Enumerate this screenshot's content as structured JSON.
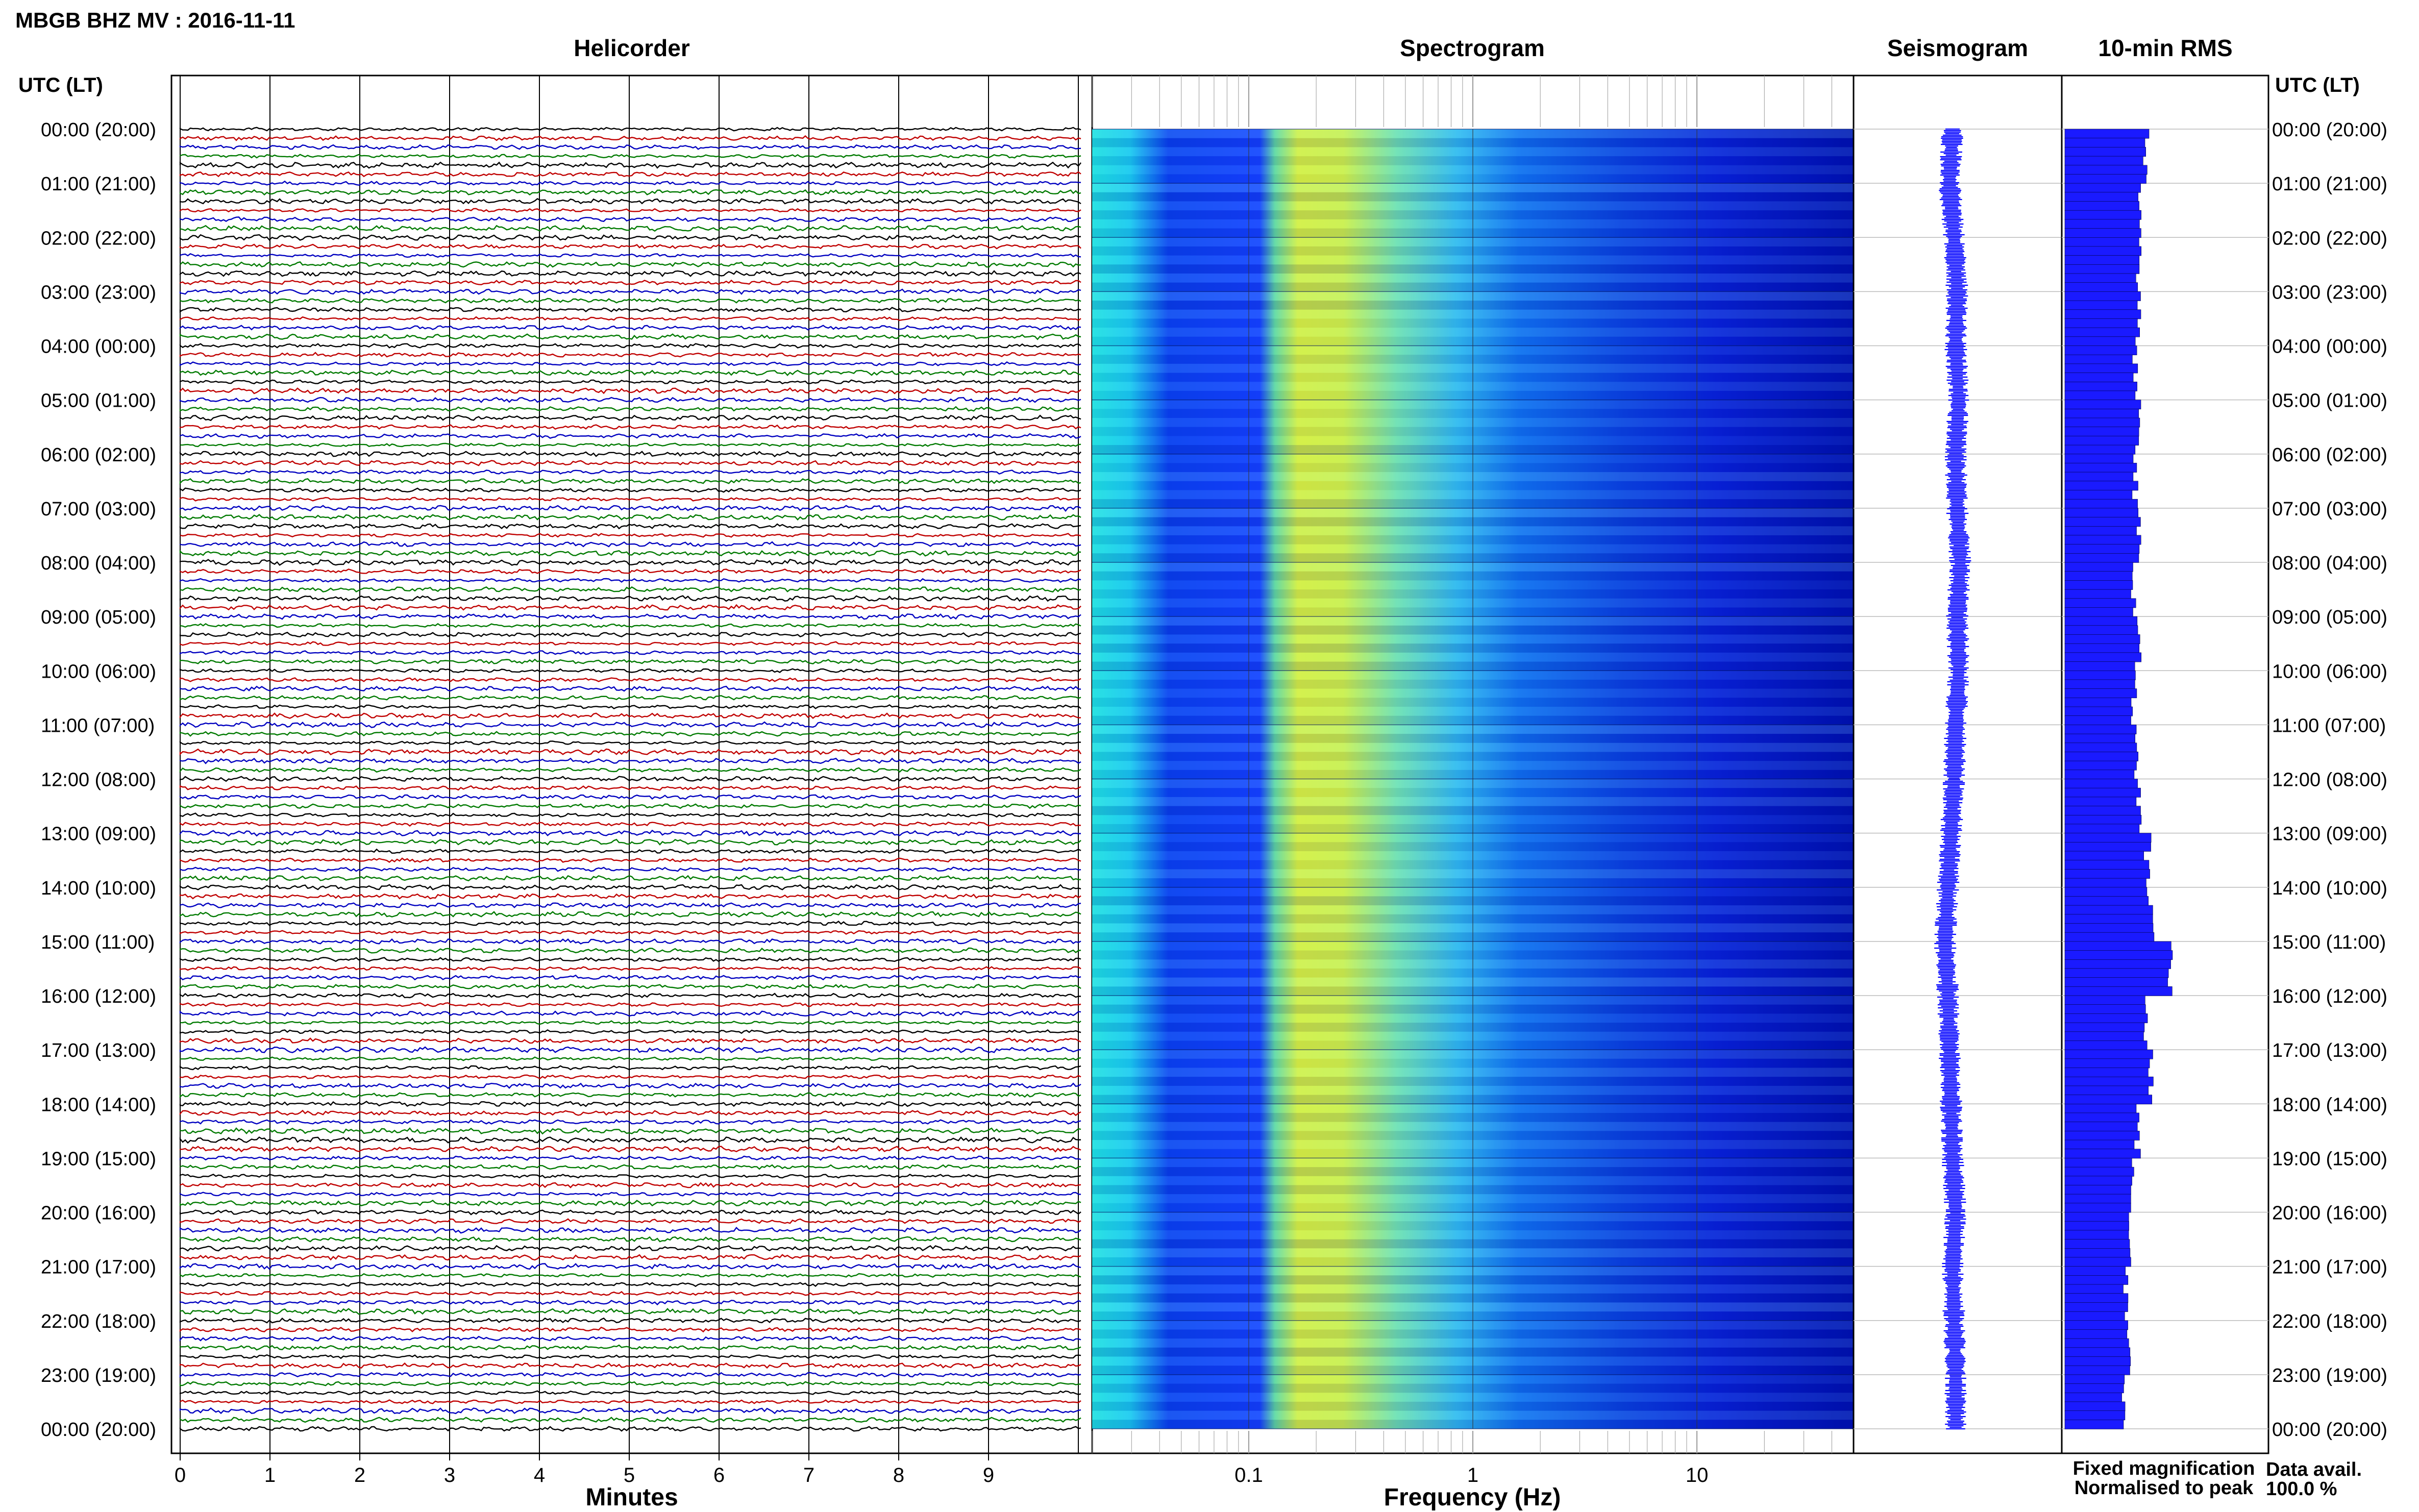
{
  "header": {
    "title": "MBGB BHZ MV : 2016-11-11",
    "panels": [
      "Helicorder",
      "Spectrogram",
      "Seismogram",
      "10-min RMS"
    ],
    "time_axis_label": "UTC (LT)",
    "footer_xlabels": {
      "helicorder": "Minutes",
      "spectrogram": "Frequency (Hz)"
    }
  },
  "legend": {
    "fixed": "Fixed magnification",
    "normalised": "Normalised to peak",
    "fixed_color": "#0000ff",
    "normalised_color": "#ff0000",
    "data_avail_label": "Data avail.",
    "data_avail_value": "100.0 %"
  },
  "colors": {
    "trace_cycle": [
      "#000000",
      "#c00000",
      "#0000c0",
      "#007a00"
    ],
    "rms_fill": "#1a1aff",
    "seismogram": "#0000ff"
  },
  "chart_data": [
    {
      "type": "line",
      "name": "helicorder",
      "title": "Helicorder",
      "xlabel": "Minutes",
      "x_ticks": [
        "0",
        "1",
        "2",
        "3",
        "4",
        "5",
        "6",
        "7",
        "8",
        "9"
      ],
      "xlim": [
        0,
        10
      ],
      "rows": 144,
      "hour_labels": [
        "00:00 (20:00)",
        "01:00 (21:00)",
        "02:00 (22:00)",
        "03:00 (23:00)",
        "04:00 (00:00)",
        "05:00 (01:00)",
        "06:00 (02:00)",
        "07:00 (03:00)",
        "08:00 (04:00)",
        "09:00 (05:00)",
        "10:00 (06:00)",
        "11:00 (07:00)",
        "12:00 (08:00)",
        "13:00 (09:00)",
        "14:00 (10:00)",
        "15:00 (11:00)",
        "16:00 (12:00)",
        "17:00 (13:00)",
        "18:00 (14:00)",
        "19:00 (15:00)",
        "20:00 (16:00)",
        "21:00 (17:00)",
        "22:00 (18:00)",
        "23:00 (19:00)",
        "00:00 (20:00)"
      ]
    },
    {
      "type": "heatmap",
      "name": "spectrogram",
      "title": "Spectrogram",
      "xlabel": "Frequency (Hz)",
      "x_scale": "log",
      "xlim": [
        0.02,
        50
      ],
      "x_ticks": [
        "0.1",
        "1",
        "10"
      ],
      "x_tick_values": [
        0.1,
        1,
        10
      ],
      "bands": [
        {
          "f_lo": 0.02,
          "f_hi": 0.05,
          "level": "cyan"
        },
        {
          "f_lo": 0.05,
          "f_hi": 0.14,
          "level": "blue"
        },
        {
          "f_lo": 0.14,
          "f_hi": 0.5,
          "level": "yellow-green"
        },
        {
          "f_lo": 0.5,
          "f_hi": 2,
          "level": "cyan-blue"
        },
        {
          "f_lo": 2,
          "f_hi": 12,
          "level": "blue"
        },
        {
          "f_lo": 12,
          "f_hi": 50,
          "level": "dark blue"
        }
      ]
    },
    {
      "type": "line",
      "name": "seismogram",
      "title": "Seismogram",
      "values_per_hour": [
        0.0,
        -0.1,
        0.05,
        0.15,
        0.1,
        0.2,
        0.1,
        0.15,
        0.25,
        0.15,
        0.2,
        0.1,
        0.05,
        -0.05,
        -0.15,
        -0.25,
        -0.15,
        -0.1,
        -0.05,
        0.0,
        0.1,
        0.0,
        0.05,
        0.1
      ]
    },
    {
      "type": "bar",
      "name": "rms",
      "title": "10-min RMS",
      "values_per_hour": [
        0.62,
        0.58,
        0.55,
        0.55,
        0.53,
        0.55,
        0.53,
        0.55,
        0.52,
        0.55,
        0.52,
        0.55,
        0.56,
        0.62,
        0.65,
        0.78,
        0.6,
        0.65,
        0.55,
        0.5,
        0.48,
        0.46,
        0.48,
        0.45
      ]
    }
  ]
}
